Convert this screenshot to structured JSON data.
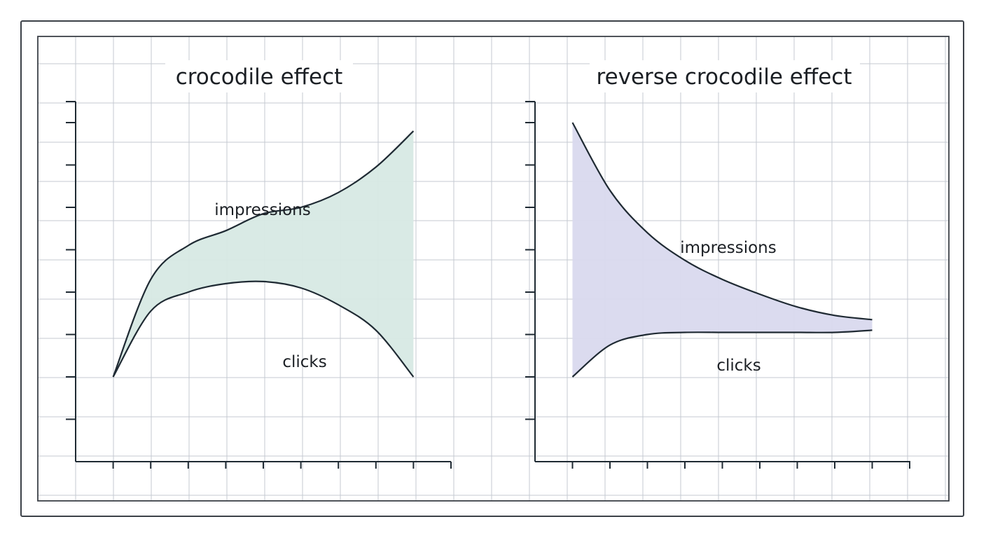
{
  "chart_data": [
    {
      "type": "area",
      "title": "crocodile effect",
      "xlabel": "",
      "ylabel": "",
      "xlim": [
        0,
        10
      ],
      "ylim": [
        0,
        9
      ],
      "grid": true,
      "fill_color": "#d7e9e4",
      "series": [
        {
          "name": "impressions",
          "x": [
            1,
            2,
            3,
            4,
            5,
            6,
            7,
            8,
            9
          ],
          "values": [
            2.0,
            4.3,
            5.1,
            5.45,
            5.85,
            6.0,
            6.35,
            6.95,
            7.8
          ]
        },
        {
          "name": "clicks",
          "x": [
            1,
            2,
            3,
            4,
            5,
            6,
            7,
            8,
            9
          ],
          "values": [
            2.0,
            3.55,
            4.0,
            4.2,
            4.25,
            4.1,
            3.7,
            3.1,
            2.0
          ]
        }
      ]
    },
    {
      "type": "area",
      "title": "reverse crocodile effect",
      "xlabel": "",
      "ylabel": "",
      "xlim": [
        0,
        9
      ],
      "ylim": [
        0,
        9
      ],
      "grid": true,
      "fill_color": "#d9d9ee",
      "series": [
        {
          "name": "impressions",
          "x": [
            1,
            2,
            3,
            4,
            5,
            6,
            7,
            8,
            9
          ],
          "values": [
            8.0,
            6.4,
            5.4,
            4.75,
            4.3,
            3.95,
            3.65,
            3.45,
            3.35
          ]
        },
        {
          "name": "clicks",
          "x": [
            1,
            2,
            3,
            4,
            5,
            6,
            7,
            8,
            9
          ],
          "values": [
            2.0,
            2.75,
            3.0,
            3.05,
            3.05,
            3.05,
            3.05,
            3.05,
            3.1
          ]
        }
      ]
    }
  ]
}
